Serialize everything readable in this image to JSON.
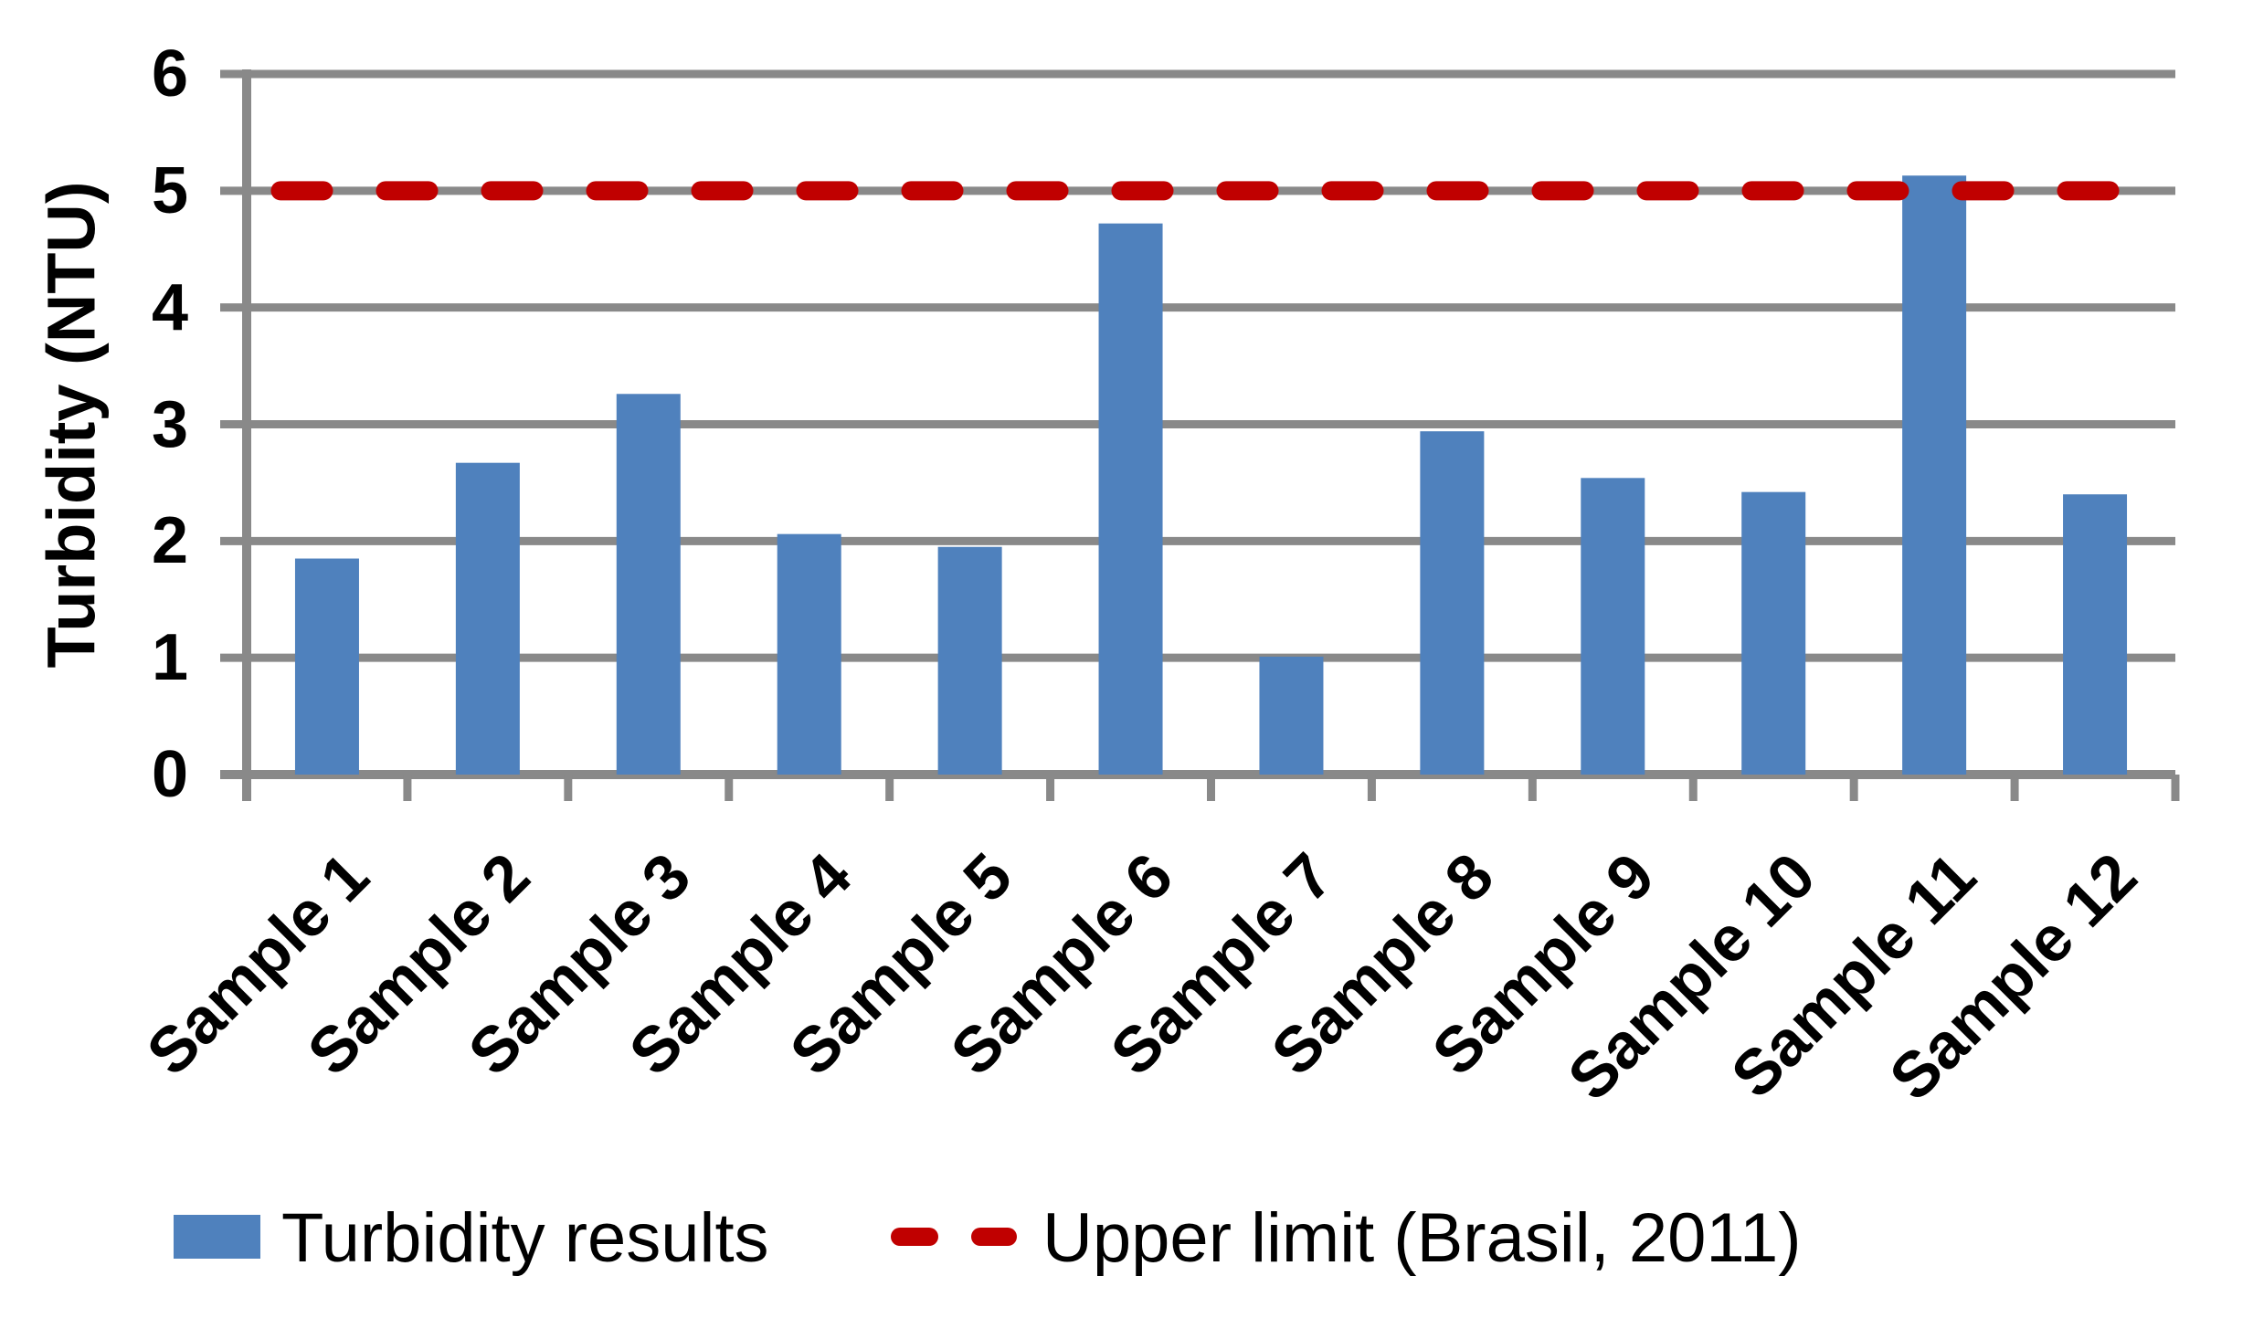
{
  "chart_data": {
    "type": "bar",
    "title": "",
    "categories": [
      "Sample 1",
      "Sample 2",
      "Sample 3",
      "Sample 4",
      "Sample 5",
      "Sample 6",
      "Sample 7",
      "Sample 8",
      "Sample 9",
      "Sample 10",
      "Sample 11",
      "Sample 12"
    ],
    "series": [
      {
        "name": "Turbidity results",
        "type": "bar",
        "color": "#4F81BD",
        "values": [
          1.85,
          2.67,
          3.26,
          2.06,
          1.95,
          4.72,
          1.01,
          2.94,
          2.54,
          2.42,
          5.13,
          2.4
        ]
      },
      {
        "name": "Upper limit (Brasil, 2011)",
        "type": "dashed-line",
        "color": "#C00000",
        "constant_value": 5
      }
    ],
    "xlabel": "",
    "ylabel": "Turbidity (NTU)",
    "ylim": [
      0,
      6
    ],
    "yticks": [
      0,
      1,
      2,
      3,
      4,
      5,
      6
    ],
    "grid": true,
    "gridline_color": "#898989",
    "x_tick_label_rotation_deg": 45,
    "legend_position": "bottom"
  },
  "legend": {
    "items": [
      {
        "label": "Turbidity results",
        "swatch": "bar-swatch"
      },
      {
        "label": "Upper limit (Brasil, 2011)",
        "swatch": "dashed-line-swatch"
      }
    ]
  },
  "colors": {
    "bar": "#4F81BD",
    "limit_line": "#C00000",
    "grid": "#898989",
    "text": "#000000",
    "background": "#FFFFFF"
  }
}
